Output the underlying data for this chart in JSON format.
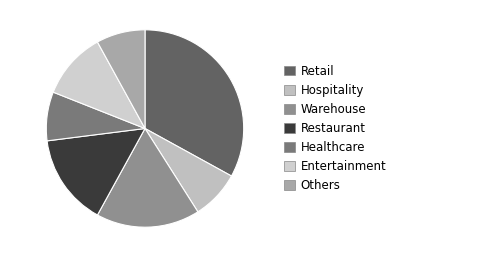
{
  "labels": [
    "Retail",
    "Hospitality",
    "Warehouse",
    "Restaurant",
    "Healthcare",
    "Entertainment",
    "Others"
  ],
  "values": [
    33,
    8,
    17,
    15,
    8,
    11,
    8
  ],
  "colors": [
    "#636363",
    "#c0c0c0",
    "#909090",
    "#3a3a3a",
    "#7a7a7a",
    "#d0d0d0",
    "#a8a8a8"
  ],
  "startangle": 90,
  "figsize": [
    5.0,
    2.57
  ],
  "dpi": 100,
  "background_color": "#ffffff",
  "legend_fontsize": 8.5,
  "edge_color": "#ffffff",
  "edge_linewidth": 0.8
}
